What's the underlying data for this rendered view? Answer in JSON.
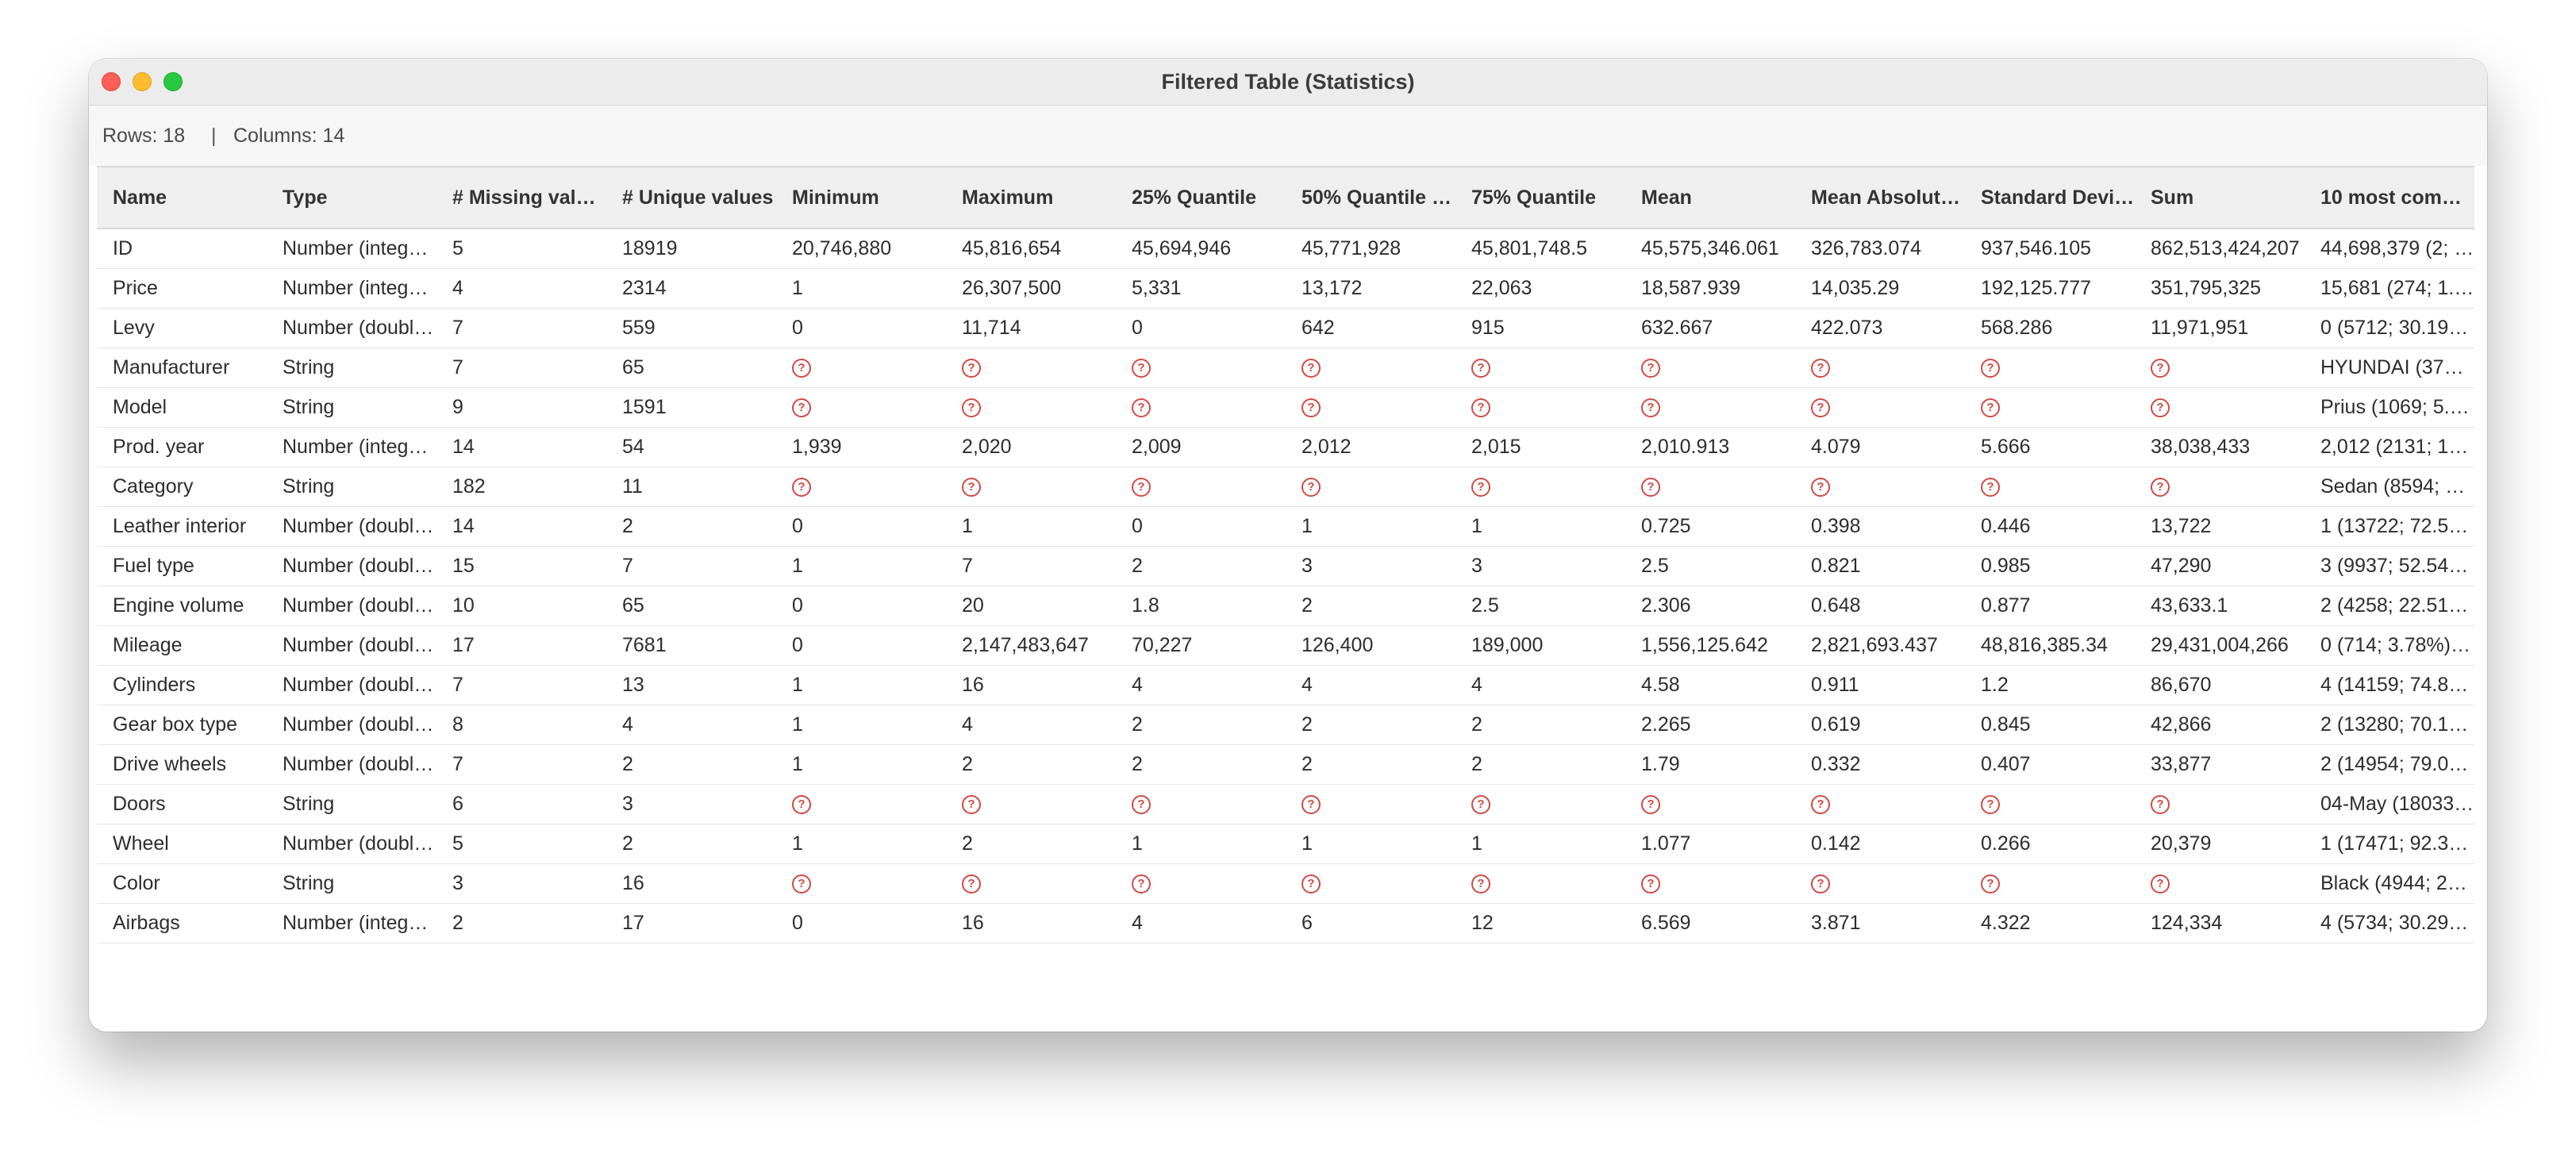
{
  "window": {
    "title": "Filtered Table (Statistics)"
  },
  "info": {
    "rows": "Rows: 18",
    "separator": "|",
    "columns": "Columns: 14"
  },
  "missing_icon": "question-circle-icon",
  "colors": {
    "missing_icon": "#d24a44",
    "header_bg": "#efefef"
  },
  "table": {
    "headers": [
      "Name",
      "Type",
      "# Missing valu…",
      "# Unique values",
      "Minimum",
      "Maximum",
      "25% Quantile",
      "50% Quantile (…",
      "75% Quantile",
      "Mean",
      "Mean Absolut…",
      "Standard Devi…",
      "Sum",
      "10 most com…"
    ],
    "rows": [
      [
        "ID",
        "Number (integ…",
        "5",
        "18919",
        "20,746,880",
        "45,816,654",
        "45,694,946",
        "45,771,928",
        "45,801,748.5",
        "45,575,346.061",
        "326,783.074",
        "937,546.105",
        "862,513,424,207",
        "44,698,379 (2; …"
      ],
      [
        "Price",
        "Number (integ…",
        "4",
        "2314",
        "1",
        "26,307,500",
        "5,331",
        "13,172",
        "22,063",
        "18,587.939",
        "14,035.29",
        "192,125.777",
        "351,795,325",
        "15,681 (274; 1.…"
      ],
      [
        "Levy",
        "Number (doubl…",
        "7",
        "559",
        "0",
        "11,714",
        "0",
        "642",
        "915",
        "632.667",
        "422.073",
        "568.286",
        "11,971,951",
        "0 (5712; 30.19…"
      ],
      [
        "Manufacturer",
        "String",
        "7",
        "65",
        null,
        null,
        null,
        null,
        null,
        null,
        null,
        null,
        null,
        "HYUNDAI (373…"
      ],
      [
        "Model",
        "String",
        "9",
        "1591",
        null,
        null,
        null,
        null,
        null,
        null,
        null,
        null,
        null,
        "Prius (1069; 5.…"
      ],
      [
        "Prod. year",
        "Number (integ…",
        "14",
        "54",
        "1,939",
        "2,020",
        "2,009",
        "2,012",
        "2,015",
        "2,010.913",
        "4.079",
        "5.666",
        "38,038,433",
        "2,012 (2131; 1…"
      ],
      [
        "Category",
        "String",
        "182",
        "11",
        null,
        null,
        null,
        null,
        null,
        null,
        null,
        null,
        null,
        "Sedan (8594; 4…"
      ],
      [
        "Leather interior",
        "Number (doubl…",
        "14",
        "2",
        "0",
        "1",
        "0",
        "1",
        "1",
        "0.725",
        "0.398",
        "0.446",
        "13,722",
        "1 (13722; 72.5…"
      ],
      [
        "Fuel type",
        "Number (doubl…",
        "15",
        "7",
        "1",
        "7",
        "2",
        "3",
        "3",
        "2.5",
        "0.821",
        "0.985",
        "47,290",
        "3 (9937; 52.54…"
      ],
      [
        "Engine volume",
        "Number (doubl…",
        "10",
        "65",
        "0",
        "20",
        "1.8",
        "2",
        "2.5",
        "2.306",
        "0.648",
        "0.877",
        "43,633.1",
        "2 (4258; 22.51…"
      ],
      [
        "Mileage",
        "Number (doubl…",
        "17",
        "7681",
        "0",
        "2,147,483,647",
        "70,227",
        "126,400",
        "189,000",
        "1,556,125.642",
        "2,821,693.437",
        "48,816,385.34",
        "29,431,004,266",
        "0 (714; 3.78%),…"
      ],
      [
        "Cylinders",
        "Number (doubl…",
        "7",
        "13",
        "1",
        "16",
        "4",
        "4",
        "4",
        "4.58",
        "0.911",
        "1.2",
        "86,670",
        "4 (14159; 74.8…"
      ],
      [
        "Gear box type",
        "Number (doubl…",
        "8",
        "4",
        "1",
        "4",
        "2",
        "2",
        "2",
        "2.265",
        "0.619",
        "0.845",
        "42,866",
        "2 (13280; 70.1…"
      ],
      [
        "Drive wheels",
        "Number (doubl…",
        "7",
        "2",
        "1",
        "2",
        "2",
        "2",
        "2",
        "1.79",
        "0.332",
        "0.407",
        "33,877",
        "2 (14954; 79.0…"
      ],
      [
        "Doors",
        "String",
        "6",
        "3",
        null,
        null,
        null,
        null,
        null,
        null,
        null,
        null,
        null,
        "04-May (18033…"
      ],
      [
        "Wheel",
        "Number (doubl…",
        "5",
        "2",
        "1",
        "2",
        "1",
        "1",
        "1",
        "1.077",
        "0.142",
        "0.266",
        "20,379",
        "1 (17471; 92.3…"
      ],
      [
        "Color",
        "String",
        "3",
        "16",
        null,
        null,
        null,
        null,
        null,
        null,
        null,
        null,
        null,
        "Black (4944; 2…"
      ],
      [
        "Airbags",
        "Number (integ…",
        "2",
        "17",
        "0",
        "16",
        "4",
        "6",
        "12",
        "6.569",
        "3.871",
        "4.322",
        "124,334",
        "4 (5734; 30.29…"
      ]
    ]
  }
}
